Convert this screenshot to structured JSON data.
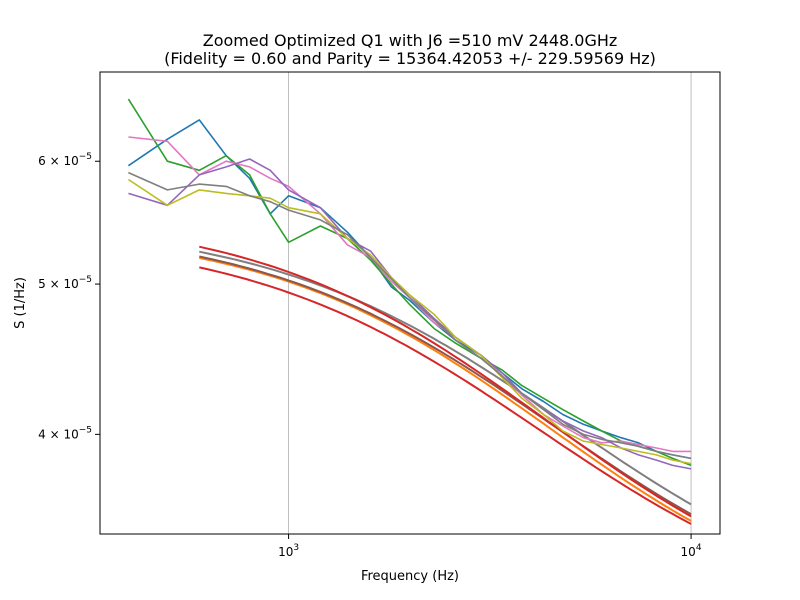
{
  "chart_data": {
    "type": "line",
    "title": "Zoomed Optimized Q1 with J6 =510 mV 2448.0GHz",
    "subtitle": "(Fidelity = 0.60 and Parity = 15364.42053 +/- 229.59569 Hz)",
    "xlabel": "Frequency (Hz)",
    "ylabel": "S (1/Hz)",
    "xscale": "log",
    "yscale": "log",
    "xlim": [
      340,
      11800
    ],
    "ylim": [
      3.45e-05,
      6.85e-05
    ],
    "grid": "x-major",
    "x_ticks": [
      {
        "value": 1000,
        "label": "10",
        "exp": "3"
      },
      {
        "value": 10000,
        "label": "10",
        "exp": "4"
      }
    ],
    "y_ticks": [
      {
        "value": 6e-05,
        "label": "6 × 10",
        "exp": "−5"
      },
      {
        "value": 5e-05,
        "label": "5 × 10",
        "exp": "−5"
      },
      {
        "value": 4e-05,
        "label": "4 × 10",
        "exp": "−5"
      }
    ],
    "x": [
      400,
      500,
      600,
      700,
      800,
      900,
      1000,
      1200,
      1400,
      1600,
      1800,
      2000,
      2300,
      2600,
      3000,
      3400,
      3800,
      4300,
      4800,
      5400,
      6000,
      6700,
      7400,
      8200,
      9000,
      10000
    ],
    "data_series": [
      {
        "color": "#1f77b4",
        "values": [
          5.96e-05,
          6.2e-05,
          6.38e-05,
          6.05e-05,
          5.85e-05,
          5.55e-05,
          5.7e-05,
          5.6e-05,
          5.4e-05,
          5.2e-05,
          4.98e-05,
          4.88e-05,
          4.72e-05,
          4.6e-05,
          4.5e-05,
          4.38e-05,
          4.28e-05,
          4.2e-05,
          4.12e-05,
          4.06e-05,
          4.02e-05,
          3.98e-05,
          3.95e-05,
          3.9e-05,
          3.88e-05,
          3.86e-05
        ]
      },
      {
        "color": "#2ca02c",
        "values": [
          6.58e-05,
          6e-05,
          5.92e-05,
          6.05e-05,
          5.88e-05,
          5.55e-05,
          5.32e-05,
          5.45e-05,
          5.35e-05,
          5.18e-05,
          5e-05,
          4.85e-05,
          4.68e-05,
          4.58e-05,
          4.48e-05,
          4.4e-05,
          4.3e-05,
          4.22e-05,
          4.15e-05,
          4.08e-05,
          4.02e-05,
          3.96e-05,
          3.93e-05,
          3.9e-05,
          3.86e-05,
          3.82e-05
        ]
      },
      {
        "color": "#e377c2",
        "values": [
          6.22e-05,
          6.18e-05,
          5.88e-05,
          6e-05,
          5.95e-05,
          5.85e-05,
          5.78e-05,
          5.55e-05,
          5.3e-05,
          5.2e-05,
          5.02e-05,
          4.9e-05,
          4.72e-05,
          4.62e-05,
          4.5e-05,
          4.36e-05,
          4.24e-05,
          4.12e-05,
          4.05e-05,
          3.98e-05,
          3.95e-05,
          3.96e-05,
          3.94e-05,
          3.92e-05,
          3.9e-05,
          3.9e-05
        ]
      },
      {
        "color": "#9467bd",
        "values": [
          5.72e-05,
          5.62e-05,
          5.88e-05,
          5.95e-05,
          6.02e-05,
          5.92e-05,
          5.75e-05,
          5.6e-05,
          5.35e-05,
          5.25e-05,
          5.05e-05,
          4.92e-05,
          4.75e-05,
          4.62e-05,
          4.5e-05,
          4.38e-05,
          4.25e-05,
          4.15e-05,
          4.08e-05,
          4.02e-05,
          3.98e-05,
          3.92e-05,
          3.88e-05,
          3.85e-05,
          3.82e-05,
          3.8e-05
        ]
      },
      {
        "color": "#bcbd22",
        "values": [
          5.84e-05,
          5.62e-05,
          5.75e-05,
          5.72e-05,
          5.7e-05,
          5.68e-05,
          5.6e-05,
          5.55e-05,
          5.35e-05,
          5.22e-05,
          5.05e-05,
          4.92e-05,
          4.78e-05,
          4.62e-05,
          4.5e-05,
          4.35e-05,
          4.22e-05,
          4.12e-05,
          4.02e-05,
          3.96e-05,
          3.94e-05,
          3.92e-05,
          3.9e-05,
          3.88e-05,
          3.85e-05,
          3.83e-05
        ]
      },
      {
        "color": "#7f7f7f",
        "values": [
          5.9e-05,
          5.75e-05,
          5.8e-05,
          5.78e-05,
          5.7e-05,
          5.65e-05,
          5.58e-05,
          5.5e-05,
          5.38e-05,
          5.2e-05,
          5.04e-05,
          4.9e-05,
          4.74e-05,
          4.6e-05,
          4.48e-05,
          4.36e-05,
          4.25e-05,
          4.15e-05,
          4.06e-05,
          4e-05,
          3.97e-05,
          3.95e-05,
          3.93e-05,
          3.9e-05,
          3.88e-05,
          3.86e-05
        ]
      }
    ],
    "fit_series": [
      {
        "color": "#d62728",
        "a0": 5.4e-05,
        "fc": 3300,
        "n": 1.2
      },
      {
        "color": "#ff7f0e",
        "a0": 5.44e-05,
        "fc": 3500,
        "n": 1.25
      },
      {
        "color": "#8c564b",
        "a0": 5.47e-05,
        "fc": 3550,
        "n": 1.2
      },
      {
        "color": "#7f7f7f",
        "a0": 5.5e-05,
        "fc": 3800,
        "n": 1.18
      },
      {
        "color": "#d62728",
        "a0": 5.56e-05,
        "fc": 3400,
        "n": 1.22
      }
    ]
  }
}
